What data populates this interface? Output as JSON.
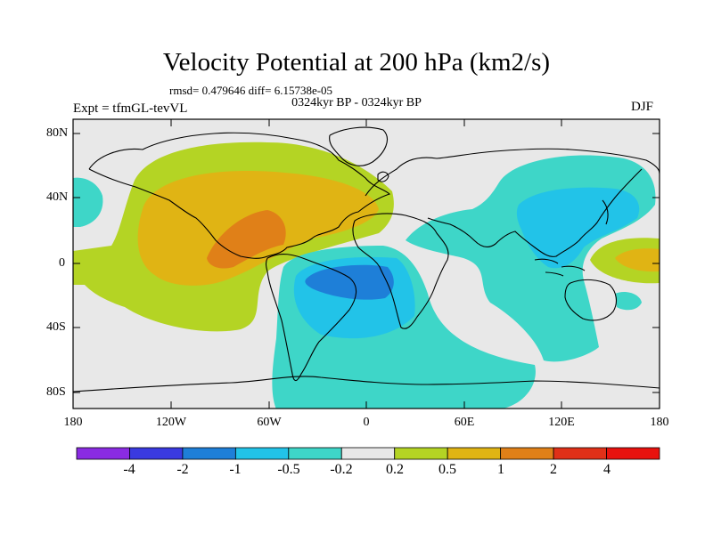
{
  "title": "Velocity Potential at 200 hPa (km2/s)",
  "stats": "rmsd= 0.479646 diff= 6.15738e-05",
  "subtitle": "0324kyr BP - 0324kyr BP",
  "left_label": "Expt = tfmGL-tevVL",
  "right_label": "DJF",
  "y_ticks": [
    "80N",
    "40N",
    "0",
    "40S",
    "80S"
  ],
  "x_ticks": [
    "180",
    "120W",
    "60W",
    "0",
    "60E",
    "120E",
    "180"
  ],
  "colorbar": {
    "labels": [
      "-4",
      "-2",
      "-1",
      "-0.5",
      "-0.2",
      "0.2",
      "0.5",
      "1",
      "2",
      "4"
    ],
    "colors": [
      "#8a2be2",
      "#3a3ae0",
      "#1e7fd8",
      "#22c3e8",
      "#3ed6c8",
      "#e8e8e8",
      "#b4d424",
      "#e0b414",
      "#e08018",
      "#e03018",
      "#e8120e"
    ]
  },
  "fills": {
    "ocean_bg": "#e8e8e8",
    "neg_weak": "#3ed6c8",
    "neg_mid": "#22c3e8",
    "neg_strong": "#1e7fd8",
    "pos_weak": "#b4d424",
    "pos_mid": "#e0b414",
    "pos_strong": "#e08018"
  }
}
